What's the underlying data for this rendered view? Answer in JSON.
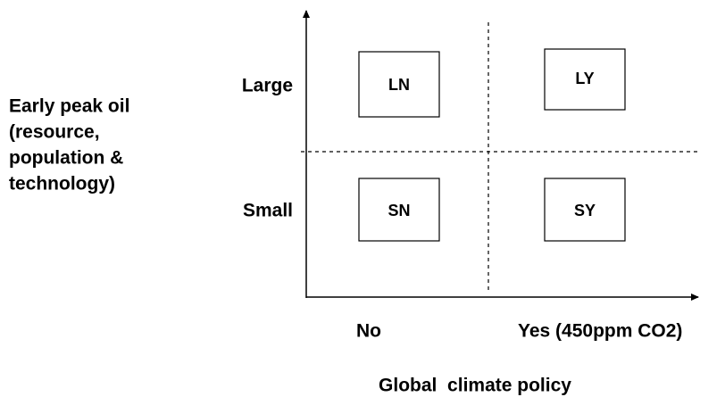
{
  "y_axis": {
    "title_lines": [
      "Early peak oil",
      "(resource,",
      "population &",
      "technology)"
    ],
    "levels": [
      "Large",
      "Small"
    ]
  },
  "x_axis": {
    "title": "Global  climate policy",
    "levels": [
      "No",
      "Yes (450ppm CO2)"
    ]
  },
  "cells": [
    "LN",
    "LY",
    "SN",
    "SY"
  ]
}
